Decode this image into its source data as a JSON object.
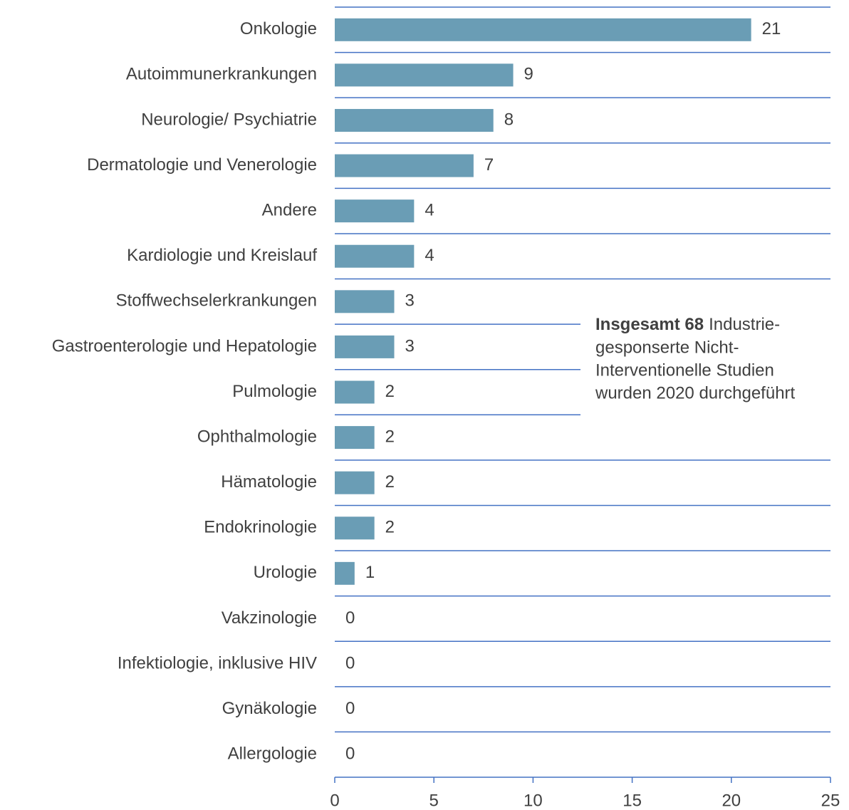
{
  "chart_data": {
    "type": "barh",
    "categories": [
      "Onkologie",
      "Autoimmunerkrankungen",
      "Neurologie/ Psychiatrie",
      "Dermatologie und Venerologie",
      "Andere",
      "Kardiologie und Kreislauf",
      "Stoffwechselerkrankungen",
      "Gastroenterologie und Hepatologie",
      "Pulmologie",
      "Ophthalmologie",
      "Hämatologie",
      "Endokrinologie",
      "Urologie",
      "Vakzinologie",
      "Infektiologie, inklusive HIV",
      "Gynäkologie",
      "Allergologie"
    ],
    "values": [
      21,
      9,
      8,
      7,
      4,
      4,
      3,
      3,
      2,
      2,
      2,
      2,
      1,
      0,
      0,
      0,
      0
    ],
    "color": "#6a9db5",
    "xlim": [
      0,
      25
    ],
    "xticks": [
      0,
      5,
      10,
      15,
      20,
      25
    ],
    "annotation": {
      "bold": "Insgesamt 68",
      "lines": [
        "Industrie-",
        "gesponserte Nicht-",
        "Interventionelle Studien",
        "wurden 2020 durchgeführt"
      ]
    }
  }
}
